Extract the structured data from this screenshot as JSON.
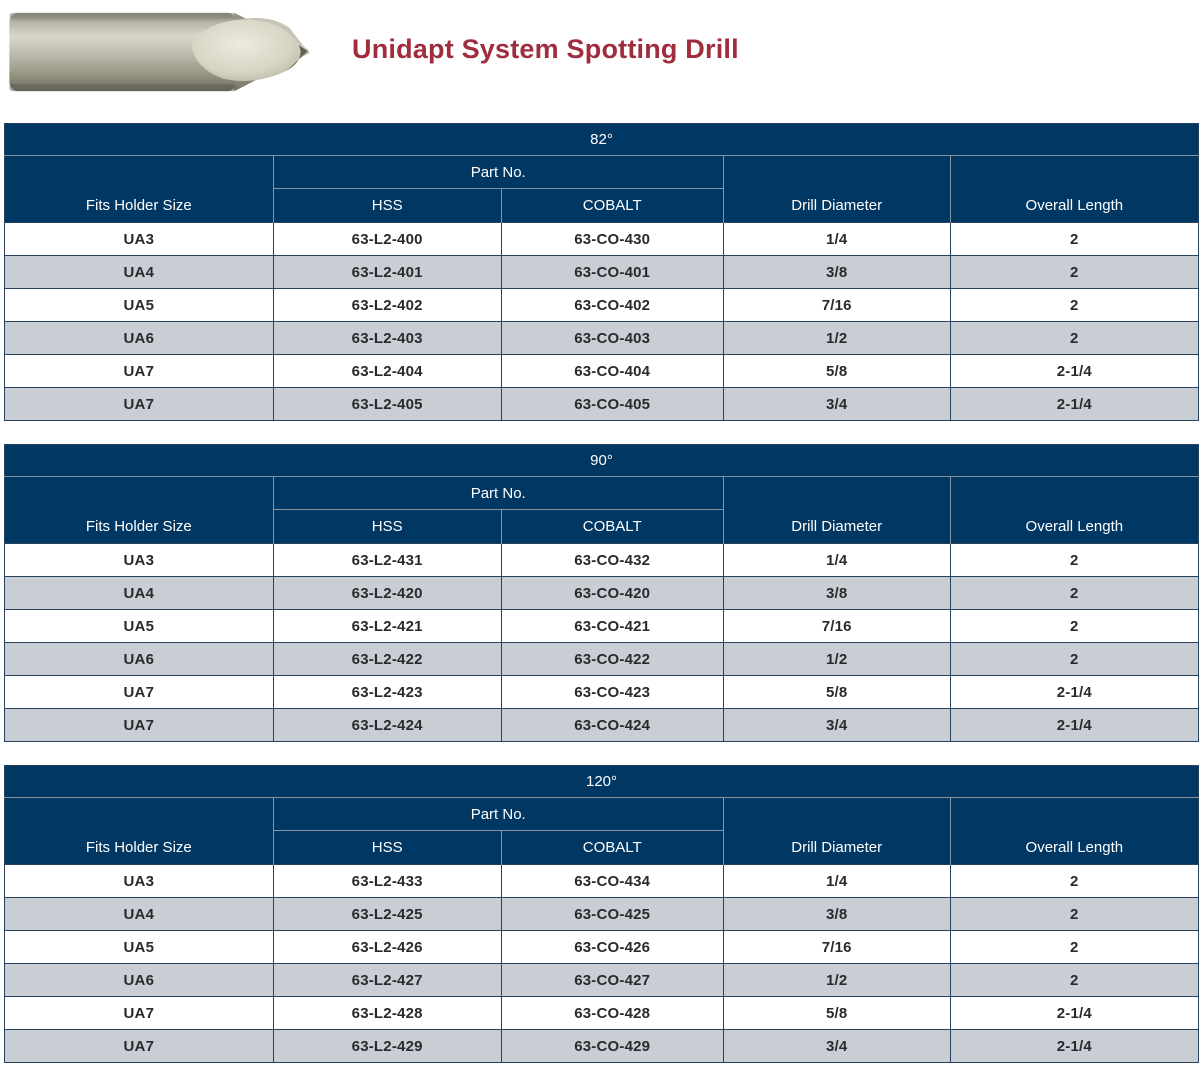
{
  "page": {
    "title": "Unidapt System Spotting Drill"
  },
  "colors": {
    "title_red": "#a02d3d",
    "header_navy": "#003763",
    "row_alt_gray": "#c9ced4",
    "body_text": "#2a2a2e"
  },
  "images": {
    "drill_photo": "spotting-drill-photo"
  },
  "columns": {
    "fits_holder_size": "Fits Holder Size",
    "part_no": "Part No.",
    "hss": "HSS",
    "cobalt": "COBALT",
    "drill_diameter": "Drill Diameter",
    "overall_length": "Overall Length"
  },
  "tables": [
    {
      "angle": "82°",
      "rows": [
        [
          "UA3",
          "63-L2-400",
          "63-CO-430",
          "1/4",
          "2"
        ],
        [
          "UA4",
          "63-L2-401",
          "63-CO-401",
          "3/8",
          "2"
        ],
        [
          "UA5",
          "63-L2-402",
          "63-CO-402",
          "7/16",
          "2"
        ],
        [
          "UA6",
          "63-L2-403",
          "63-CO-403",
          "1/2",
          "2"
        ],
        [
          "UA7",
          "63-L2-404",
          "63-CO-404",
          "5/8",
          "2-1/4"
        ],
        [
          "UA7",
          "63-L2-405",
          "63-CO-405",
          "3/4",
          "2-1/4"
        ]
      ]
    },
    {
      "angle": "90°",
      "rows": [
        [
          "UA3",
          "63-L2-431",
          "63-CO-432",
          "1/4",
          "2"
        ],
        [
          "UA4",
          "63-L2-420",
          "63-CO-420",
          "3/8",
          "2"
        ],
        [
          "UA5",
          "63-L2-421",
          "63-CO-421",
          "7/16",
          "2"
        ],
        [
          "UA6",
          "63-L2-422",
          "63-CO-422",
          "1/2",
          "2"
        ],
        [
          "UA7",
          "63-L2-423",
          "63-CO-423",
          "5/8",
          "2-1/4"
        ],
        [
          "UA7",
          "63-L2-424",
          "63-CO-424",
          "3/4",
          "2-1/4"
        ]
      ]
    },
    {
      "angle": "120°",
      "rows": [
        [
          "UA3",
          "63-L2-433",
          "63-CO-434",
          "1/4",
          "2"
        ],
        [
          "UA4",
          "63-L2-425",
          "63-CO-425",
          "3/8",
          "2"
        ],
        [
          "UA5",
          "63-L2-426",
          "63-CO-426",
          "7/16",
          "2"
        ],
        [
          "UA6",
          "63-L2-427",
          "63-CO-427",
          "1/2",
          "2"
        ],
        [
          "UA7",
          "63-L2-428",
          "63-CO-428",
          "5/8",
          "2-1/4"
        ],
        [
          "UA7",
          "63-L2-429",
          "63-CO-429",
          "3/4",
          "2-1/4"
        ]
      ]
    }
  ]
}
